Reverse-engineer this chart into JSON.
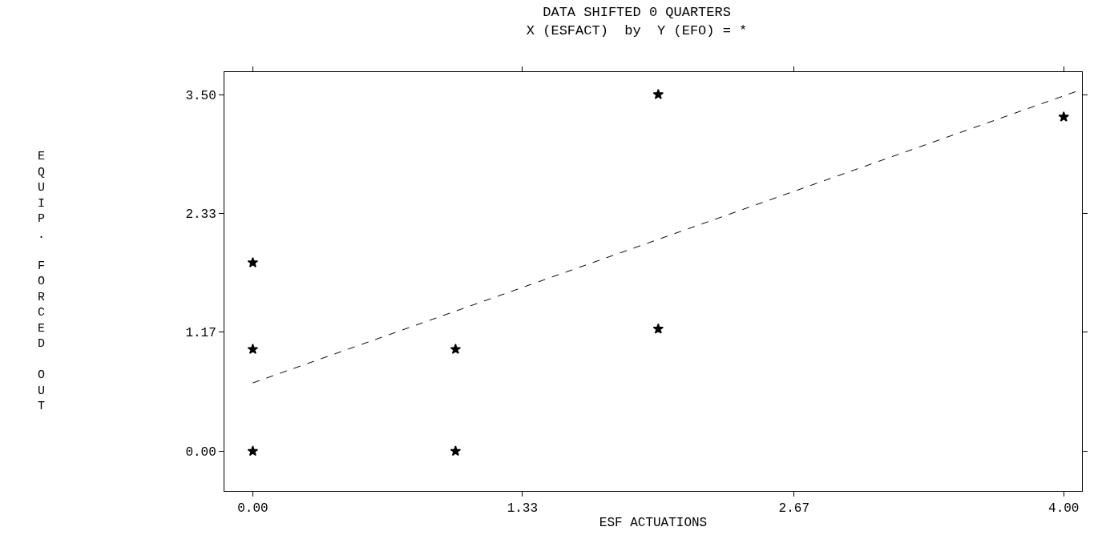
{
  "chart_data": {
    "type": "scatter",
    "title": "DATA SHIFTED 0 QUARTERS",
    "subtitle": "X (ESFACT)  by  Y (EFO) = *",
    "xlabel": "ESF ACTUATIONS",
    "ylabel": "EQUIP. FORCED OUT",
    "x": [
      0,
      0,
      0,
      1,
      1,
      2,
      2,
      4
    ],
    "series": [
      {
        "color": "#000000",
        "marker": "star",
        "values": [
          1.85,
          1.0,
          0,
          1.0,
          0,
          3.5,
          1.2,
          3.28
        ]
      },
      {
        "type": "line",
        "color": "#000000",
        "line_style": "dashed",
        "marker": "none",
        "x": [
          0,
          4.09
        ],
        "values": [
          0.67,
          3.55
        ]
      }
    ],
    "xlim": [
      -0.14,
      4.09
    ],
    "ylim": [
      -0.39,
      3.72
    ],
    "xticks": [
      {
        "value": 0,
        "label": "0.00"
      },
      1.33,
      2.67,
      {
        "value": 4,
        "label": "4.00"
      }
    ],
    "yticks": [
      {
        "value": 0,
        "label": "0.00"
      },
      1.17,
      2.33,
      {
        "value": 3.5,
        "label": "3.50"
      }
    ],
    "grid": false,
    "legend": false
  }
}
